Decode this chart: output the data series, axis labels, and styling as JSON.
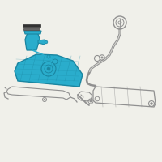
{
  "bg_color": "#f0f0ea",
  "tank_color": "#2aadcc",
  "tank_stroke": "#1a85a0",
  "line_color": "#909090",
  "line_dark": "#555555",
  "gasket_color": "#333333",
  "figsize": [
    2.0,
    2.0
  ],
  "dpi": 100
}
